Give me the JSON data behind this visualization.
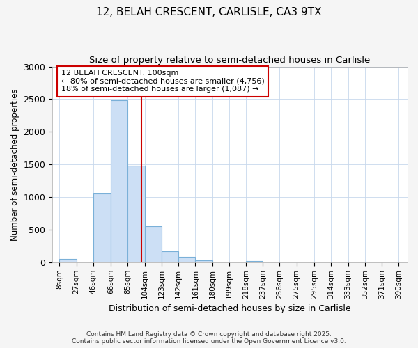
{
  "title1": "12, BELAH CRESCENT, CARLISLE, CA3 9TX",
  "title2": "Size of property relative to semi-detached houses in Carlisle",
  "xlabel": "Distribution of semi-detached houses by size in Carlisle",
  "ylabel": "Number of semi-detached properties",
  "bins": [
    "8sqm",
    "27sqm",
    "46sqm",
    "66sqm",
    "85sqm",
    "104sqm",
    "123sqm",
    "142sqm",
    "161sqm",
    "180sqm",
    "199sqm",
    "218sqm",
    "237sqm",
    "256sqm",
    "275sqm",
    "295sqm",
    "314sqm",
    "333sqm",
    "352sqm",
    "371sqm",
    "390sqm"
  ],
  "bar_lefts": [
    8,
    27,
    46,
    66,
    85,
    104,
    123,
    142,
    161,
    180,
    199,
    218,
    237,
    256,
    275,
    295,
    314,
    333,
    352,
    371
  ],
  "bar_widths": [
    19,
    19,
    20,
    19,
    19,
    19,
    19,
    19,
    19,
    19,
    19,
    19,
    19,
    19,
    20,
    19,
    19,
    19,
    19,
    19
  ],
  "bar_heights": [
    50,
    0,
    1050,
    2480,
    1480,
    550,
    170,
    85,
    30,
    0,
    0,
    18,
    0,
    0,
    0,
    0,
    0,
    0,
    0,
    0
  ],
  "bar_color": "#ccdff5",
  "bar_edgecolor": "#7ab0d8",
  "property_size": 100,
  "property_line_color": "#cc0000",
  "annotation_box_color": "#cc0000",
  "annotation_text1": "12 BELAH CRESCENT: 100sqm",
  "annotation_text2": "← 80% of semi-detached houses are smaller (4,756)",
  "annotation_text3": "18% of semi-detached houses are larger (1,087) →",
  "ylim": [
    0,
    3000
  ],
  "yticks": [
    0,
    500,
    1000,
    1500,
    2000,
    2500,
    3000
  ],
  "xlim": [
    0,
    400
  ],
  "footer1": "Contains HM Land Registry data © Crown copyright and database right 2025.",
  "footer2": "Contains public sector information licensed under the Open Government Licence v3.0.",
  "background_color": "#f5f5f5",
  "plot_bg_color": "#ffffff",
  "grid_color": "#c8d8ec"
}
